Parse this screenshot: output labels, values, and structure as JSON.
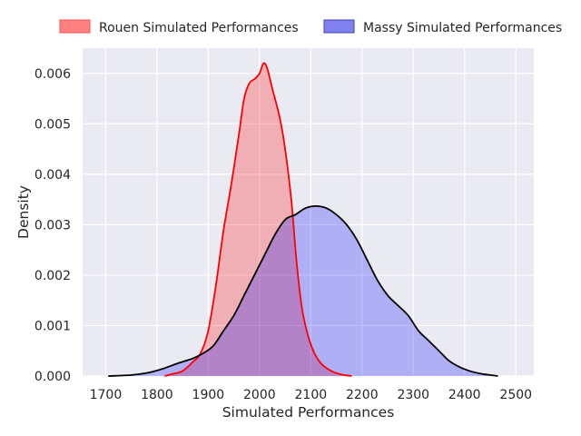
{
  "chart_data": {
    "type": "area",
    "xlabel": "Simulated Performances",
    "ylabel": "Density",
    "xlim": [
      1655,
      2535
    ],
    "ylim": [
      0,
      0.0065
    ],
    "xticks": [
      1700,
      1800,
      1900,
      2000,
      2100,
      2200,
      2300,
      2400,
      2500
    ],
    "xtick_labels": [
      "1700",
      "1800",
      "1900",
      "2000",
      "2100",
      "2200",
      "2300",
      "2400",
      "2500"
    ],
    "yticks": [
      0,
      0.001,
      0.002,
      0.003,
      0.004,
      0.005,
      0.006
    ],
    "ytick_labels": [
      "0.000",
      "0.001",
      "0.002",
      "0.003",
      "0.004",
      "0.005",
      "0.006"
    ],
    "grid": true,
    "legend_position": "top-center",
    "background": "#eaeaf2",
    "series": [
      {
        "name": "Rouen Simulated Performances",
        "line_color": "#ff0000",
        "fill_color": "#ff0000",
        "fill_opacity": 0.25,
        "legend_fill": "#ff8080",
        "legend_edge": "#ff5050",
        "points": [
          [
            1815,
            0
          ],
          [
            1830,
            4e-05
          ],
          [
            1850,
            0.0001
          ],
          [
            1870,
            0.00028
          ],
          [
            1885,
            0.00045
          ],
          [
            1900,
            0.0009
          ],
          [
            1915,
            0.0018
          ],
          [
            1930,
            0.0029
          ],
          [
            1945,
            0.0038
          ],
          [
            1960,
            0.0048
          ],
          [
            1970,
            0.0055
          ],
          [
            1980,
            0.0058
          ],
          [
            1992,
            0.0059
          ],
          [
            2000,
            0.006
          ],
          [
            2008,
            0.0062
          ],
          [
            2015,
            0.0061
          ],
          [
            2025,
            0.0057
          ],
          [
            2040,
            0.0051
          ],
          [
            2050,
            0.0045
          ],
          [
            2062,
            0.0035
          ],
          [
            2072,
            0.0023
          ],
          [
            2082,
            0.0014
          ],
          [
            2092,
            0.0009
          ],
          [
            2105,
            0.0005
          ],
          [
            2120,
            0.00025
          ],
          [
            2140,
            0.0001
          ],
          [
            2160,
            3e-05
          ],
          [
            2180,
            0
          ]
        ]
      },
      {
        "name": "Massy Simulated Performances",
        "line_color": "#000000",
        "fill_color": "#0000ff",
        "fill_opacity": 0.25,
        "legend_fill": "#8080f0",
        "legend_edge": "#4040b0",
        "points": [
          [
            1705,
            0
          ],
          [
            1750,
            2e-05
          ],
          [
            1780,
            6e-05
          ],
          [
            1810,
            0.00014
          ],
          [
            1840,
            0.00025
          ],
          [
            1870,
            0.00035
          ],
          [
            1890,
            0.00045
          ],
          [
            1910,
            0.0006
          ],
          [
            1930,
            0.0009
          ],
          [
            1950,
            0.0012
          ],
          [
            1970,
            0.0016
          ],
          [
            1990,
            0.002
          ],
          [
            2010,
            0.0024
          ],
          [
            2030,
            0.0028
          ],
          [
            2050,
            0.0031
          ],
          [
            2070,
            0.0032
          ],
          [
            2090,
            0.00333
          ],
          [
            2110,
            0.00337
          ],
          [
            2130,
            0.00333
          ],
          [
            2150,
            0.0032
          ],
          [
            2170,
            0.003
          ],
          [
            2190,
            0.0027
          ],
          [
            2210,
            0.0023
          ],
          [
            2230,
            0.0019
          ],
          [
            2250,
            0.0016
          ],
          [
            2270,
            0.0014
          ],
          [
            2290,
            0.0012
          ],
          [
            2310,
            0.0009
          ],
          [
            2330,
            0.0007
          ],
          [
            2350,
            0.0005
          ],
          [
            2370,
            0.0003
          ],
          [
            2390,
            0.00018
          ],
          [
            2410,
            0.0001
          ],
          [
            2430,
            5e-05
          ],
          [
            2450,
            2e-05
          ],
          [
            2465,
            0
          ]
        ]
      }
    ]
  }
}
